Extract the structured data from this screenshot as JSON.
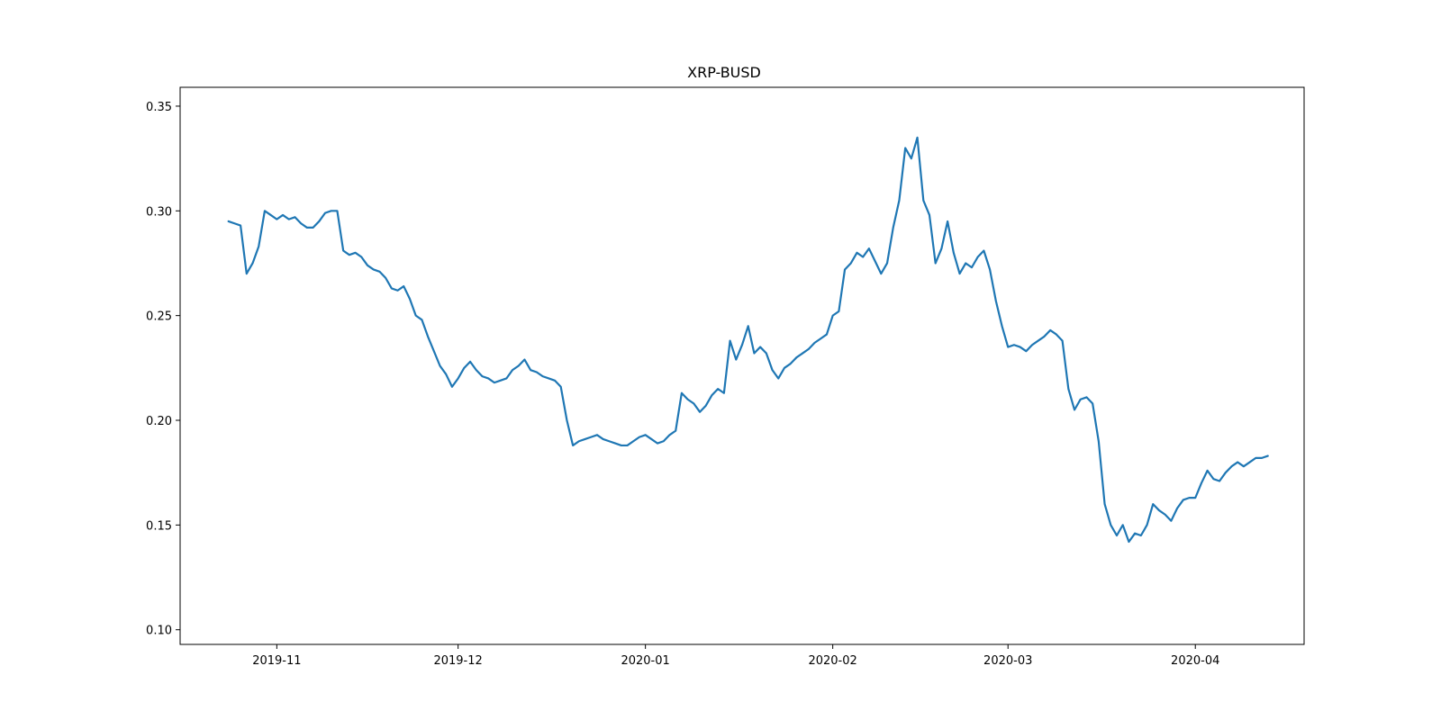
{
  "chart_data": {
    "type": "line",
    "title": "XRP-BUSD",
    "xlabel": "",
    "ylabel": "",
    "x_axis_type": "date",
    "xlim": [
      "2019-10-16",
      "2020-04-19"
    ],
    "ylim": [
      0.093,
      0.359
    ],
    "x_ticks": [
      "2019-11",
      "2019-12",
      "2020-01",
      "2020-02",
      "2020-03",
      "2020-04"
    ],
    "x_tick_dates": [
      "2019-11-01",
      "2019-12-01",
      "2020-01-01",
      "2020-02-01",
      "2020-03-01",
      "2020-04-01"
    ],
    "y_ticks": [
      "0.10",
      "0.15",
      "0.20",
      "0.25",
      "0.30",
      "0.35"
    ],
    "y_tick_values": [
      0.1,
      0.15,
      0.2,
      0.25,
      0.3,
      0.35
    ],
    "grid": false,
    "legend": "none",
    "series": [
      {
        "color": "#1f77b4",
        "x": [
          "2019-10-24",
          "2019-10-25",
          "2019-10-26",
          "2019-10-27",
          "2019-10-28",
          "2019-10-29",
          "2019-10-30",
          "2019-10-31",
          "2019-11-01",
          "2019-11-02",
          "2019-11-03",
          "2019-11-04",
          "2019-11-05",
          "2019-11-06",
          "2019-11-07",
          "2019-11-08",
          "2019-11-09",
          "2019-11-10",
          "2019-11-11",
          "2019-11-12",
          "2019-11-13",
          "2019-11-14",
          "2019-11-15",
          "2019-11-16",
          "2019-11-17",
          "2019-11-18",
          "2019-11-19",
          "2019-11-20",
          "2019-11-21",
          "2019-11-22",
          "2019-11-23",
          "2019-11-24",
          "2019-11-25",
          "2019-11-26",
          "2019-11-27",
          "2019-11-28",
          "2019-11-29",
          "2019-11-30",
          "2019-12-01",
          "2019-12-02",
          "2019-12-03",
          "2019-12-04",
          "2019-12-05",
          "2019-12-06",
          "2019-12-07",
          "2019-12-08",
          "2019-12-09",
          "2019-12-10",
          "2019-12-11",
          "2019-12-12",
          "2019-12-13",
          "2019-12-14",
          "2019-12-15",
          "2019-12-16",
          "2019-12-17",
          "2019-12-18",
          "2019-12-19",
          "2019-12-20",
          "2019-12-21",
          "2019-12-22",
          "2019-12-23",
          "2019-12-24",
          "2019-12-25",
          "2019-12-26",
          "2019-12-27",
          "2019-12-28",
          "2019-12-29",
          "2019-12-30",
          "2019-12-31",
          "2020-01-01",
          "2020-01-02",
          "2020-01-03",
          "2020-01-04",
          "2020-01-05",
          "2020-01-06",
          "2020-01-07",
          "2020-01-08",
          "2020-01-09",
          "2020-01-10",
          "2020-01-11",
          "2020-01-12",
          "2020-01-13",
          "2020-01-14",
          "2020-01-15",
          "2020-01-16",
          "2020-01-17",
          "2020-01-18",
          "2020-01-19",
          "2020-01-20",
          "2020-01-21",
          "2020-01-22",
          "2020-01-23",
          "2020-01-24",
          "2020-01-25",
          "2020-01-26",
          "2020-01-27",
          "2020-01-28",
          "2020-01-29",
          "2020-01-30",
          "2020-01-31",
          "2020-02-01",
          "2020-02-02",
          "2020-02-03",
          "2020-02-04",
          "2020-02-05",
          "2020-02-06",
          "2020-02-07",
          "2020-02-08",
          "2020-02-09",
          "2020-02-10",
          "2020-02-11",
          "2020-02-12",
          "2020-02-13",
          "2020-02-14",
          "2020-02-15",
          "2020-02-16",
          "2020-02-17",
          "2020-02-18",
          "2020-02-19",
          "2020-02-20",
          "2020-02-21",
          "2020-02-22",
          "2020-02-23",
          "2020-02-24",
          "2020-02-25",
          "2020-02-26",
          "2020-02-27",
          "2020-02-28",
          "2020-02-29",
          "2020-03-01",
          "2020-03-02",
          "2020-03-03",
          "2020-03-04",
          "2020-03-05",
          "2020-03-06",
          "2020-03-07",
          "2020-03-08",
          "2020-03-09",
          "2020-03-10",
          "2020-03-11",
          "2020-03-12",
          "2020-03-13",
          "2020-03-14",
          "2020-03-15",
          "2020-03-16",
          "2020-03-17",
          "2020-03-18",
          "2020-03-19",
          "2020-03-20",
          "2020-03-21",
          "2020-03-22",
          "2020-03-23",
          "2020-03-24",
          "2020-03-25",
          "2020-03-26",
          "2020-03-27",
          "2020-03-28",
          "2020-03-29",
          "2020-03-30",
          "2020-03-31",
          "2020-04-01",
          "2020-04-02",
          "2020-04-03",
          "2020-04-04",
          "2020-04-05",
          "2020-04-06",
          "2020-04-07",
          "2020-04-08",
          "2020-04-09",
          "2020-04-10",
          "2020-04-11",
          "2020-04-12",
          "2020-04-13"
        ],
        "y": [
          0.295,
          0.294,
          0.293,
          0.27,
          0.275,
          0.283,
          0.3,
          0.298,
          0.296,
          0.298,
          0.296,
          0.297,
          0.294,
          0.292,
          0.292,
          0.295,
          0.299,
          0.3,
          0.3,
          0.281,
          0.279,
          0.28,
          0.278,
          0.274,
          0.272,
          0.271,
          0.268,
          0.263,
          0.262,
          0.264,
          0.258,
          0.25,
          0.248,
          0.24,
          0.233,
          0.226,
          0.222,
          0.216,
          0.22,
          0.225,
          0.228,
          0.224,
          0.221,
          0.22,
          0.218,
          0.219,
          0.22,
          0.224,
          0.226,
          0.229,
          0.224,
          0.223,
          0.221,
          0.22,
          0.219,
          0.216,
          0.2,
          0.188,
          0.19,
          0.191,
          0.192,
          0.193,
          0.191,
          0.19,
          0.189,
          0.188,
          0.188,
          0.19,
          0.192,
          0.193,
          0.191,
          0.189,
          0.19,
          0.193,
          0.195,
          0.213,
          0.21,
          0.208,
          0.204,
          0.207,
          0.212,
          0.215,
          0.213,
          0.238,
          0.229,
          0.236,
          0.245,
          0.232,
          0.235,
          0.232,
          0.224,
          0.22,
          0.225,
          0.227,
          0.23,
          0.232,
          0.234,
          0.237,
          0.239,
          0.241,
          0.25,
          0.252,
          0.272,
          0.275,
          0.28,
          0.278,
          0.282,
          0.276,
          0.27,
          0.275,
          0.292,
          0.305,
          0.33,
          0.325,
          0.335,
          0.305,
          0.298,
          0.275,
          0.282,
          0.295,
          0.28,
          0.27,
          0.275,
          0.273,
          0.278,
          0.281,
          0.272,
          0.257,
          0.245,
          0.235,
          0.236,
          0.235,
          0.233,
          0.236,
          0.238,
          0.24,
          0.243,
          0.241,
          0.238,
          0.215,
          0.205,
          0.21,
          0.211,
          0.208,
          0.19,
          0.16,
          0.15,
          0.145,
          0.15,
          0.142,
          0.146,
          0.145,
          0.15,
          0.16,
          0.157,
          0.155,
          0.152,
          0.158,
          0.162,
          0.163,
          0.163,
          0.17,
          0.176,
          0.172,
          0.171,
          0.175,
          0.178,
          0.18,
          0.178,
          0.18,
          0.182,
          0.182,
          0.183
        ]
      }
    ]
  }
}
